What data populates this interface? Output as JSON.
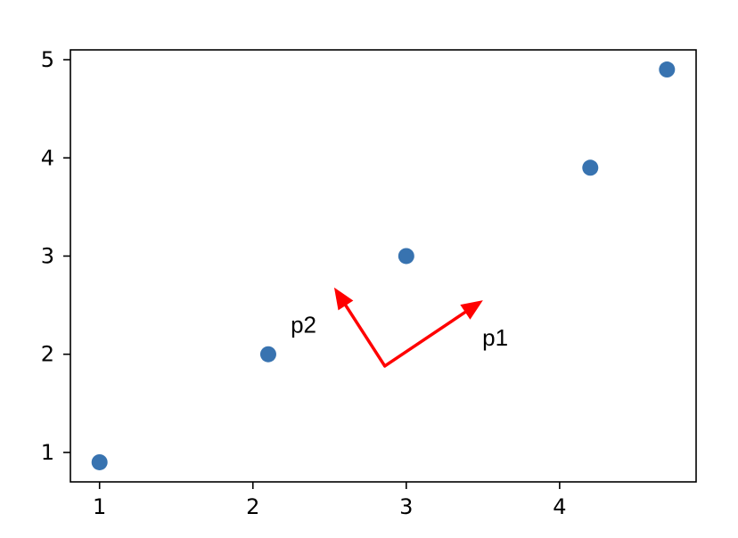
{
  "chart_data": {
    "type": "scatter",
    "title": "",
    "xlabel": "",
    "ylabel": "",
    "xlim": [
      0.81,
      4.89
    ],
    "ylim": [
      0.7,
      5.1
    ],
    "xticks": [
      1,
      2,
      3,
      4
    ],
    "yticks": [
      1,
      2,
      3,
      4,
      5
    ],
    "grid": false,
    "series": [
      {
        "points": [
          {
            "x": 1.0,
            "y": 0.9
          },
          {
            "x": 2.1,
            "y": 2.0
          },
          {
            "x": 3.0,
            "y": 3.0
          },
          {
            "x": 4.2,
            "y": 3.9
          },
          {
            "x": 4.7,
            "y": 4.9
          }
        ]
      }
    ],
    "annotations": [
      {
        "label": "p1",
        "from": [
          2.86,
          1.88
        ],
        "to": [
          3.5,
          2.55
        ],
        "label_at": [
          3.58,
          2.17
        ]
      },
      {
        "label": "p2",
        "from": [
          2.86,
          1.88
        ],
        "to": [
          2.53,
          2.68
        ],
        "label_at": [
          2.33,
          2.3
        ]
      }
    ],
    "colors": {
      "points": "#3873b0",
      "arrows": "#ff0000",
      "axes": "#000000"
    }
  }
}
